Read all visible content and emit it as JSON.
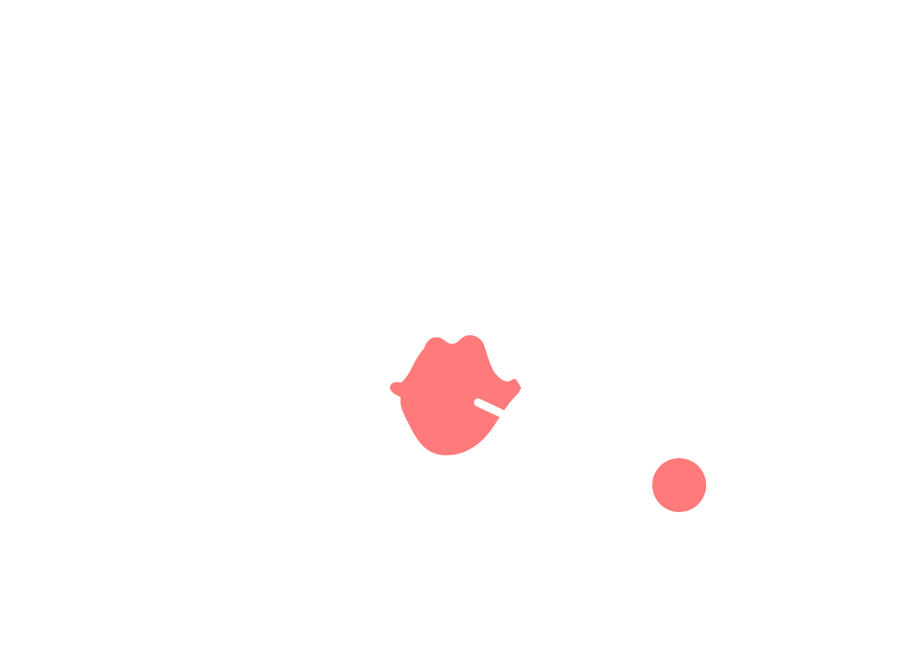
{
  "game": {
    "colors": {
      "background": "#ffffff",
      "entity": "#ff7a7a",
      "highlight": "#ffffff"
    },
    "entities": [
      {
        "role": "player",
        "icon": "splat-blob-icon"
      },
      {
        "role": "ball",
        "icon": "circle-icon"
      }
    ]
  }
}
